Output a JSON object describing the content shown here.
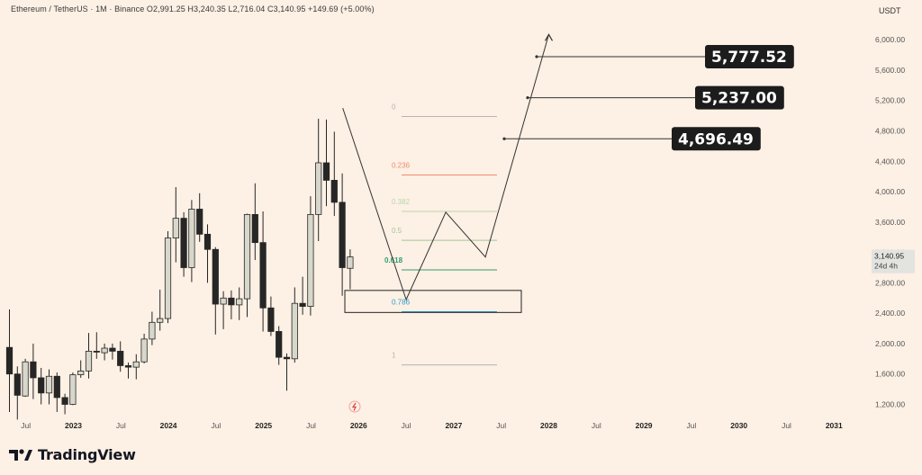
{
  "header": {
    "symbol": "Ethereum / TetherUS · 1M · Binance",
    "ohlc": "  O2,991.25  H3,240.35  L2,716.04  C3,140.95  +149.69 (+5.00%)"
  },
  "brand": "TradingView",
  "colors": {
    "background": "#fdf0e4",
    "candle_up": "#d7d7cc",
    "candle_down": "#262626",
    "fib_0": "#b5b5b5",
    "fib_0236": "#f08a6e",
    "fib_0382": "#b8d6b0",
    "fib_05": "#9fc79b",
    "fib_0618": "#2e9e6e",
    "fib_0786": "#2a9fd0",
    "fib_1": "#b5b5b5"
  },
  "chart_data": {
    "type": "candlestick",
    "symbol": "Ethereum / TetherUS",
    "interval": "1M",
    "exchange": "Binance",
    "axis_label": "USDT",
    "ylim": [
      1050,
      6450
    ],
    "yticks": [
      "6,000.00",
      "5,600.00",
      "5,200.00",
      "4,800.00",
      "4,400.00",
      "4,000.00",
      "3,600.00",
      "3,200.00",
      "2,800.00",
      "2,400.00",
      "2,000.00",
      "1,600.00",
      "1,200.00"
    ],
    "x_labels": [
      "Jul",
      "2023",
      "Jul",
      "2024",
      "Jul",
      "2025",
      "Jul",
      "2026",
      "Jul",
      "2027",
      "Jul",
      "2028",
      "Jul",
      "2029",
      "Jul",
      "2030",
      "Jul",
      "2031"
    ],
    "current_price": {
      "value": "3,140.95",
      "countdown": "24d 4h"
    },
    "candles": [
      {
        "o": 1950,
        "h": 2450,
        "l": 1100,
        "c": 1600
      },
      {
        "o": 1600,
        "h": 1700,
        "l": 1000,
        "c": 1320
      },
      {
        "o": 1310,
        "h": 1800,
        "l": 1300,
        "c": 1760
      },
      {
        "o": 1760,
        "h": 2000,
        "l": 1270,
        "c": 1550
      },
      {
        "o": 1550,
        "h": 1680,
        "l": 1200,
        "c": 1350
      },
      {
        "o": 1350,
        "h": 1660,
        "l": 1200,
        "c": 1570
      },
      {
        "o": 1570,
        "h": 1620,
        "l": 1100,
        "c": 1290
      },
      {
        "o": 1290,
        "h": 1340,
        "l": 1070,
        "c": 1200
      },
      {
        "o": 1200,
        "h": 1620,
        "l": 1190,
        "c": 1590
      },
      {
        "o": 1590,
        "h": 1780,
        "l": 1550,
        "c": 1640
      },
      {
        "o": 1640,
        "h": 2140,
        "l": 1540,
        "c": 1900
      },
      {
        "o": 1900,
        "h": 2150,
        "l": 1800,
        "c": 1890
      },
      {
        "o": 1880,
        "h": 2000,
        "l": 1780,
        "c": 1940
      },
      {
        "o": 1940,
        "h": 2000,
        "l": 1790,
        "c": 1900
      },
      {
        "o": 1900,
        "h": 2030,
        "l": 1630,
        "c": 1710
      },
      {
        "o": 1710,
        "h": 1750,
        "l": 1540,
        "c": 1690
      },
      {
        "o": 1690,
        "h": 1860,
        "l": 1530,
        "c": 1760
      },
      {
        "o": 1760,
        "h": 2130,
        "l": 1740,
        "c": 2060
      },
      {
        "o": 2060,
        "h": 2420,
        "l": 1980,
        "c": 2280
      },
      {
        "o": 2280,
        "h": 2710,
        "l": 2170,
        "c": 2330
      },
      {
        "o": 2330,
        "h": 3480,
        "l": 2270,
        "c": 3390
      },
      {
        "o": 3390,
        "h": 4060,
        "l": 3070,
        "c": 3650
      },
      {
        "o": 3650,
        "h": 3730,
        "l": 2880,
        "c": 3000
      },
      {
        "o": 3000,
        "h": 3890,
        "l": 2810,
        "c": 3770
      },
      {
        "o": 3770,
        "h": 3980,
        "l": 3340,
        "c": 3440
      },
      {
        "o": 3440,
        "h": 3570,
        "l": 2800,
        "c": 3240
      },
      {
        "o": 3240,
        "h": 3270,
        "l": 2120,
        "c": 2520
      },
      {
        "o": 2520,
        "h": 2690,
        "l": 2190,
        "c": 2600
      },
      {
        "o": 2600,
        "h": 2700,
        "l": 2320,
        "c": 2510
      },
      {
        "o": 2510,
        "h": 2740,
        "l": 2310,
        "c": 2590
      },
      {
        "o": 2590,
        "h": 3710,
        "l": 2350,
        "c": 3700
      },
      {
        "o": 3700,
        "h": 4110,
        "l": 3100,
        "c": 3330
      },
      {
        "o": 3330,
        "h": 3740,
        "l": 2160,
        "c": 2470
      },
      {
        "o": 2470,
        "h": 2620,
        "l": 2100,
        "c": 2160
      },
      {
        "o": 2160,
        "h": 2230,
        "l": 1720,
        "c": 1820
      },
      {
        "o": 1820,
        "h": 1870,
        "l": 1380,
        "c": 1800
      },
      {
        "o": 1800,
        "h": 2740,
        "l": 1750,
        "c": 2530
      },
      {
        "o": 2530,
        "h": 2880,
        "l": 2380,
        "c": 2490
      },
      {
        "o": 2490,
        "h": 3940,
        "l": 2370,
        "c": 3700
      },
      {
        "o": 3700,
        "h": 4960,
        "l": 3350,
        "c": 4380
      },
      {
        "o": 4380,
        "h": 4950,
        "l": 3810,
        "c": 4150
      },
      {
        "o": 4150,
        "h": 4790,
        "l": 3680,
        "c": 3860
      },
      {
        "o": 3860,
        "h": 4240,
        "l": 2630,
        "c": 3000
      },
      {
        "o": 2991.25,
        "h": 3240.35,
        "l": 2716.04,
        "c": 3140.95
      }
    ],
    "fib_levels": [
      {
        "label": "0",
        "value": 4990
      },
      {
        "label": "0.236",
        "value": 4220
      },
      {
        "label": "0.382",
        "value": 3740
      },
      {
        "label": "0.5",
        "value": 3360
      },
      {
        "label": "0.618",
        "value": 2970
      },
      {
        "label": "0.786",
        "value": 2420
      },
      {
        "label": "1",
        "value": 1720
      }
    ],
    "support_zone": [
      2410,
      2700
    ],
    "projected_path": [
      {
        "t": "2025-11",
        "price": 5100
      },
      {
        "t": "2026-07",
        "price": 2580
      },
      {
        "t": "2026-12",
        "price": 3730
      },
      {
        "t": "2027-05",
        "price": 3140
      },
      {
        "t": "2028-01",
        "price": 6070
      }
    ],
    "targets": [
      "5,777.52",
      "5,237.00",
      "4,696.49"
    ]
  }
}
